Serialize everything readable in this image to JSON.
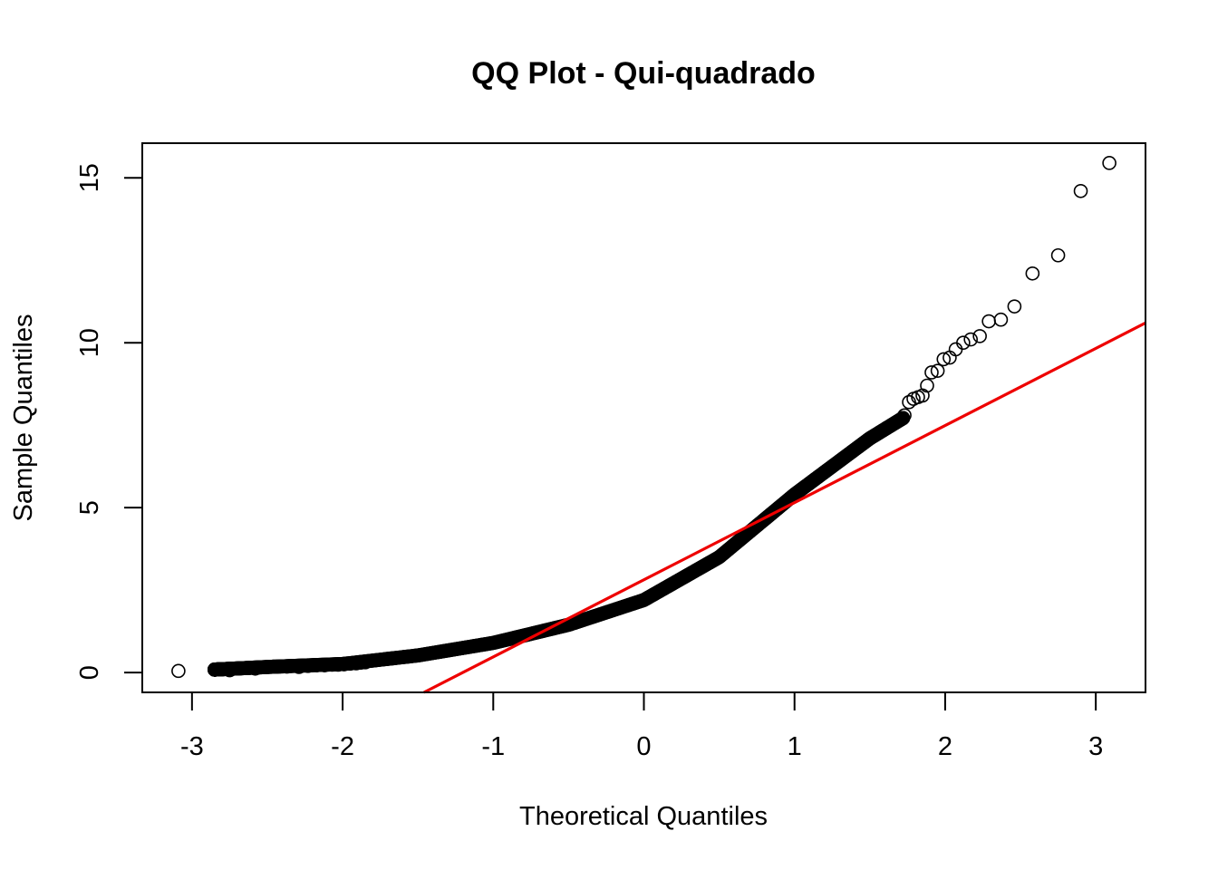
{
  "chart_data": {
    "type": "scatter",
    "title": "QQ Plot - Qui-quadrado",
    "xlabel": "Theoretical Quantiles",
    "ylabel": "Sample Quantiles",
    "xlim": [
      -3.33,
      3.33
    ],
    "ylim": [
      -0.6,
      16.05
    ],
    "x_ticks": [
      -3,
      -2,
      -1,
      0,
      1,
      2,
      3
    ],
    "y_ticks": [
      0,
      5,
      10,
      15
    ],
    "x_tick_labels": [
      "-3",
      "-2",
      "-1",
      "0",
      "1",
      "2",
      "3"
    ],
    "y_tick_labels": [
      "0",
      "5",
      "10",
      "15"
    ],
    "grid": false,
    "legend": "none",
    "reference_line": {
      "color": "#ee0000",
      "points": [
        [
          -1.46,
          -0.6
        ],
        [
          3.33,
          10.6
        ]
      ]
    },
    "series": [
      {
        "marker": "open-circle",
        "color": "#000000",
        "curve_anchors": [
          [
            -2.9,
            0.08
          ],
          [
            -2.5,
            0.17
          ],
          [
            -2.0,
            0.26
          ],
          [
            -1.5,
            0.52
          ],
          [
            -1.0,
            0.9
          ],
          [
            -0.5,
            1.45
          ],
          [
            0.0,
            2.2
          ],
          [
            0.5,
            3.5
          ],
          [
            1.0,
            5.4
          ],
          [
            1.5,
            7.1
          ],
          [
            1.75,
            7.8
          ]
        ],
        "n_body": 900,
        "body_range": [
          -2.85,
          1.72
        ],
        "tail_points": [
          [
            -3.09,
            0.05
          ],
          [
            -2.75,
            0.07
          ],
          [
            -2.58,
            0.12
          ],
          [
            -2.46,
            0.18
          ],
          [
            -2.37,
            0.18
          ],
          [
            -2.29,
            0.17
          ],
          [
            -2.23,
            0.2
          ],
          [
            -2.17,
            0.22
          ],
          [
            -2.12,
            0.22
          ],
          [
            -2.07,
            0.24
          ],
          [
            -2.03,
            0.24
          ],
          [
            -1.99,
            0.25
          ],
          [
            -1.95,
            0.27
          ],
          [
            -1.91,
            0.28
          ],
          [
            -1.88,
            0.3
          ],
          [
            -1.85,
            0.31
          ],
          [
            1.73,
            7.8
          ],
          [
            1.76,
            8.2
          ],
          [
            1.79,
            8.3
          ],
          [
            1.82,
            8.35
          ],
          [
            1.85,
            8.4
          ],
          [
            1.88,
            8.7
          ],
          [
            1.91,
            9.1
          ],
          [
            1.95,
            9.15
          ],
          [
            1.99,
            9.5
          ],
          [
            2.03,
            9.55
          ],
          [
            2.07,
            9.8
          ],
          [
            2.12,
            10.0
          ],
          [
            2.17,
            10.1
          ],
          [
            2.23,
            10.2
          ],
          [
            2.29,
            10.65
          ],
          [
            2.37,
            10.7
          ],
          [
            2.46,
            11.1
          ],
          [
            2.58,
            12.1
          ],
          [
            2.75,
            12.65
          ],
          [
            2.9,
            14.6
          ],
          [
            3.09,
            15.45
          ]
        ]
      }
    ]
  }
}
